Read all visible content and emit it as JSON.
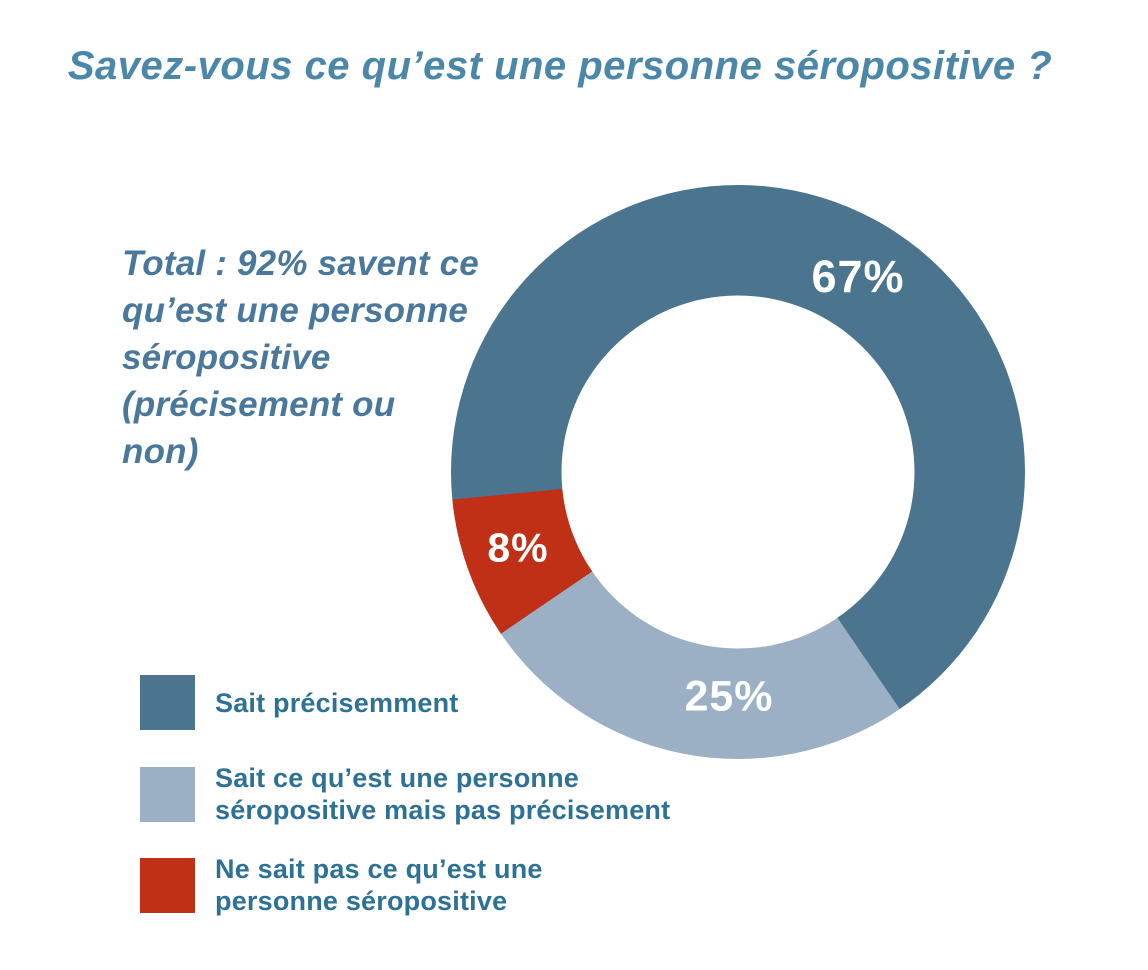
{
  "colors": {
    "background": "#ffffff",
    "title_text": "#4a87a8",
    "annotation_text": "#4a789c",
    "legend_text": "#2d7195",
    "slice_label_text": "#ffffff"
  },
  "annotation": {
    "text": "Total : 92% savent ce qu’est une personne séropositive (précisement ou non)",
    "lines": [
      "Total : 92% savent ce",
      "qu’est une personne",
      "séropositive",
      "(précisement ou",
      "non)"
    ]
  },
  "chart_data": {
    "type": "pie",
    "donut": true,
    "title": "Savez-vous ce qu’est une personne séropositive ?",
    "start_angle_deg": 264.5,
    "hole_ratio": 0.615,
    "legend_position": "bottom-left",
    "annotation": "Total : 92% savent ce qu’est une personne séropositive (précisement ou non)",
    "slices": [
      {
        "label": "Sait précisemment",
        "label_lines": [
          "Sait précisemment"
        ],
        "value": 67,
        "display": "67%",
        "color": "#4b748f"
      },
      {
        "label": "Sait ce qu’est une personne séropositive mais pas précisement",
        "label_lines": [
          "Sait ce qu’est une personne",
          "séropositive mais pas précisement"
        ],
        "value": 25,
        "display": "25%",
        "color": "#9bb0c4"
      },
      {
        "label": "Ne sait pas ce qu’est une personne séropositive",
        "label_lines": [
          "Ne sait pas ce qu’est une",
          "personne séropositive"
        ],
        "value": 8,
        "display": "8%",
        "color": "#c03016"
      }
    ]
  }
}
